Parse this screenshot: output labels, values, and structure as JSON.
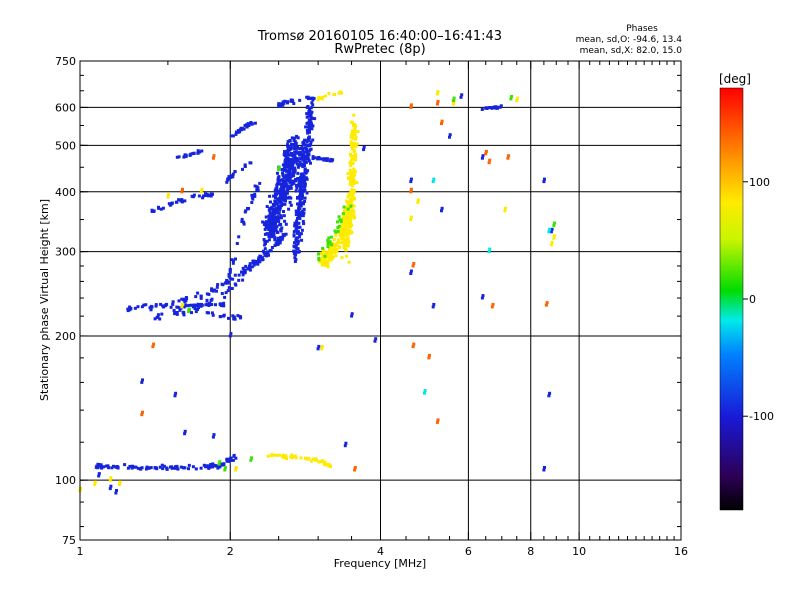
{
  "chart_data": {
    "type": "scatter",
    "title": "Tromsø 20160105 16:40:00–16:41:43",
    "subtitle": "RwPretec (8p)",
    "xlabel": "Frequency [MHz]",
    "ylabel": "Stationary phase Virtual Height [km]",
    "x_scale": "log2",
    "y_scale": "log",
    "xlim": [
      1,
      16
    ],
    "ylim": [
      75,
      750
    ],
    "x_ticks": [
      1,
      2,
      4,
      6,
      8,
      10,
      16
    ],
    "x_tick_labels": [
      "1",
      "2",
      "4",
      "6",
      "8",
      "10",
      "16"
    ],
    "y_ticks": [
      75,
      100,
      200,
      300,
      400,
      500,
      600,
      750
    ],
    "y_tick_labels": [
      "75",
      "100",
      "200",
      "300",
      "400",
      "500",
      "600",
      "750"
    ],
    "grid_x": [
      2,
      4,
      6,
      8,
      10
    ],
    "grid_y": [
      100,
      200,
      300,
      400,
      500,
      600
    ],
    "stats": {
      "heading": "Phases",
      "line1": "mean, sd,O:  -94.6, 13.4",
      "line2": "mean, sd,X:  82.0, 15.0"
    },
    "colorbar": {
      "label": "[deg]",
      "vmin": -180,
      "vmax": 180,
      "ticks": [
        100,
        0,
        -100
      ],
      "tick_labels": [
        "100",
        "0",
        "-100"
      ]
    },
    "series": [
      {
        "name": "",
        "phase": -95,
        "segments": [
          {
            "x": [
              1.08,
              1.3,
              1.6,
              1.9,
              2.05
            ],
            "y": [
              107,
              106,
              106,
              107,
              112
            ],
            "n": 110,
            "jx": 0.01,
            "jy": 0.015
          },
          {
            "x": [
              1.25,
              1.5,
              1.8,
              2.1,
              2.4,
              2.6
            ],
            "y": [
              228,
              232,
              245,
              270,
              300,
              330
            ],
            "n": 110,
            "jx": 0.01,
            "jy": 0.02
          },
          {
            "x": [
              1.4,
              1.7,
              2.0,
              2.3,
              2.5
            ],
            "y": [
              220,
              228,
              250,
              290,
              360
            ],
            "n": 70,
            "jx": 0.012,
            "jy": 0.03
          },
          {
            "x": [
              1.45,
              1.6,
              1.75,
              1.95
            ],
            "y": [
              232,
              230,
              233,
              232
            ],
            "n": 30,
            "jx": 0.01,
            "jy": 0.01
          },
          {
            "x": [
              1.8,
              1.9,
              2.0,
              2.1
            ],
            "y": [
              225,
              220,
              218,
              220
            ],
            "n": 18,
            "jx": 0.01,
            "jy": 0.015
          },
          {
            "x": [
              1.35,
              1.5,
              1.7,
              1.85
            ],
            "y": [
              360,
              375,
              390,
              395
            ],
            "n": 40,
            "jx": 0.01,
            "jy": 0.015
          },
          {
            "x": [
              1.5,
              1.62,
              1.75
            ],
            "y": [
              470,
              475,
              485
            ],
            "n": 18,
            "jx": 0.008,
            "jy": 0.01
          },
          {
            "x": [
              2.0,
              2.1,
              2.25
            ],
            "y": [
              520,
              540,
              560
            ],
            "n": 25,
            "jx": 0.01,
            "jy": 0.015
          },
          {
            "x": [
              1.95,
              2.05,
              2.2
            ],
            "y": [
              420,
              440,
              460
            ],
            "n": 20,
            "jx": 0.01,
            "jy": 0.015
          },
          {
            "x": [
              1.95,
              2.05,
              2.15,
              2.3
            ],
            "y": [
              250,
              300,
              360,
              420
            ],
            "n": 40,
            "jx": 0.01,
            "jy": 0.03
          },
          {
            "x": [
              2.4,
              2.55,
              2.7
            ],
            "y": [
              330,
              400,
              500
            ],
            "n": 420,
            "jx": 0.06,
            "jy": 0.1
          },
          {
            "x": [
              2.7,
              2.8,
              2.9
            ],
            "y": [
              300,
              420,
              600
            ],
            "n": 260,
            "jx": 0.03,
            "jy": 0.12
          },
          {
            "x": [
              2.75,
              3.0,
              3.2
            ],
            "y": [
              470,
              470,
              465
            ],
            "n": 30,
            "jx": 0.01,
            "jy": 0.01
          },
          {
            "x": [
              2.5,
              2.7,
              2.95
            ],
            "y": [
              610,
              620,
              630
            ],
            "n": 25,
            "jx": 0.02,
            "jy": 0.02
          },
          {
            "x": [
              6.4,
              6.7,
              7.0
            ],
            "y": [
              595,
              600,
              602
            ],
            "n": 18,
            "jx": 0.01,
            "jy": 0.01
          }
        ],
        "scatter": [
          [
            1.15,
            96
          ],
          [
            1.18,
            94
          ],
          [
            1.09,
            102
          ],
          [
            1.33,
            160
          ],
          [
            1.55,
            150
          ],
          [
            1.62,
            125
          ],
          [
            1.85,
            123
          ],
          [
            2.0,
            200
          ],
          [
            3.0,
            188
          ],
          [
            3.5,
            220
          ],
          [
            3.7,
            490
          ],
          [
            3.9,
            195
          ],
          [
            4.6,
            270
          ],
          [
            4.6,
            420
          ],
          [
            5.1,
            230
          ],
          [
            5.3,
            365
          ],
          [
            5.5,
            520
          ],
          [
            5.8,
            630
          ],
          [
            6.4,
            240
          ],
          [
            6.4,
            470
          ],
          [
            8.5,
            420
          ],
          [
            8.5,
            105
          ],
          [
            8.7,
            150
          ],
          [
            8.8,
            330
          ],
          [
            3.4,
            118
          ]
        ]
      },
      {
        "name": "",
        "phase": 82,
        "segments": [
          {
            "x": [
              3.05,
              3.2,
              3.35,
              3.5
            ],
            "y": [
              285,
              300,
              330,
              370
            ],
            "n": 160,
            "jx": 0.035,
            "jy": 0.05
          },
          {
            "x": [
              3.4,
              3.5,
              3.55
            ],
            "y": [
              300,
              400,
              560
            ],
            "n": 200,
            "jx": 0.025,
            "jy": 0.09
          },
          {
            "x": [
              2.4,
              2.7,
              3.0,
              3.2
            ],
            "y": [
              113,
              112,
              110,
              107
            ],
            "n": 45,
            "jx": 0.015,
            "jy": 0.015
          },
          {
            "x": [
              3.0,
              3.2,
              3.35
            ],
            "y": [
              625,
              640,
              650
            ],
            "n": 12,
            "jx": 0.015,
            "jy": 0.015
          }
        ],
        "scatter": [
          [
            1.15,
            100
          ],
          [
            1.2,
            98
          ],
          [
            1.5,
            390
          ],
          [
            1.6,
            230
          ],
          [
            1.75,
            400
          ],
          [
            3.05,
            188
          ],
          [
            3.15,
            310
          ],
          [
            4.6,
            350
          ],
          [
            4.75,
            380
          ],
          [
            5.2,
            640
          ],
          [
            5.6,
            610
          ],
          [
            7.1,
            365
          ],
          [
            7.5,
            620
          ],
          [
            8.8,
            310
          ],
          [
            8.9,
            320
          ],
          [
            1.0,
            95
          ],
          [
            1.07,
            98
          ],
          [
            2.05,
            105
          ]
        ]
      },
      {
        "name": "",
        "phase": 20,
        "segments": [
          {
            "x": [
              3.0,
              3.2,
              3.45
            ],
            "y": [
              290,
              320,
              380
            ],
            "n": 30,
            "jx": 0.03,
            "jy": 0.05
          }
        ],
        "scatter": [
          [
            1.65,
            225
          ],
          [
            1.9,
            108
          ],
          [
            2.5,
            445
          ],
          [
            5.6,
            620
          ],
          [
            7.3,
            625
          ],
          [
            8.9,
            340
          ],
          [
            1.95,
            105
          ],
          [
            2.2,
            110
          ]
        ]
      },
      {
        "name": "",
        "phase": 140,
        "scatter": [
          [
            1.33,
            137
          ],
          [
            1.4,
            190
          ],
          [
            1.6,
            400
          ],
          [
            4.6,
            600
          ],
          [
            4.6,
            400
          ],
          [
            4.65,
            280
          ],
          [
            4.65,
            190
          ],
          [
            5.2,
            610
          ],
          [
            5.3,
            555
          ],
          [
            5.0,
            180
          ],
          [
            5.2,
            132
          ],
          [
            6.5,
            480
          ],
          [
            6.6,
            460
          ],
          [
            6.7,
            230
          ],
          [
            7.2,
            470
          ],
          [
            8.6,
            232
          ],
          [
            3.55,
            105
          ],
          [
            1.85,
            470
          ]
        ]
      },
      {
        "name": "",
        "phase": -20,
        "scatter": [
          [
            4.9,
            152
          ],
          [
            5.1,
            420
          ],
          [
            6.6,
            300
          ],
          [
            8.7,
            330
          ]
        ]
      }
    ]
  }
}
